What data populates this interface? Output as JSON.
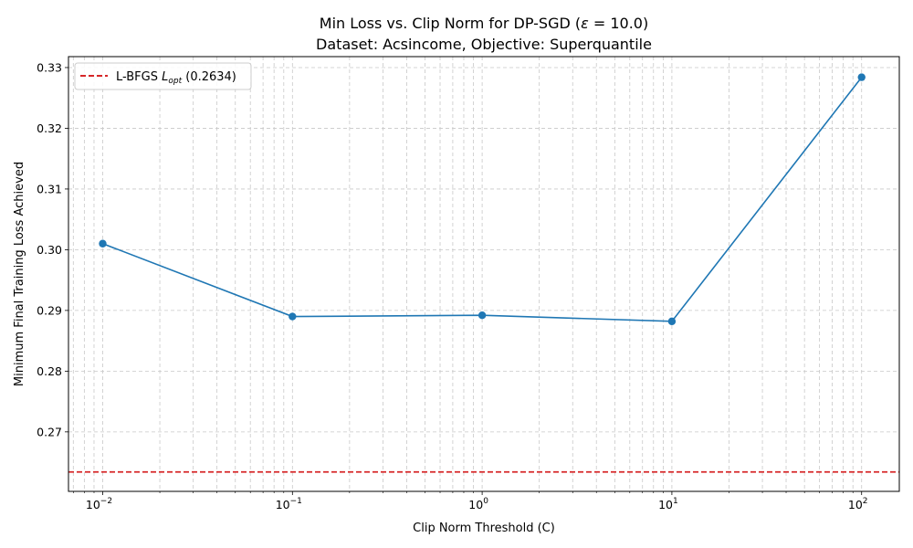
{
  "chart_data": {
    "type": "line",
    "title_line1_prefix": "Min Loss vs. Clip Norm for DP-SGD (",
    "title_epsilon_symbol": "ε",
    "title_epsilon_value": " = 10.0)",
    "title_line2": "Dataset: Acsincome, Objective: Superquantile",
    "xlabel": "Clip Norm Threshold (C)",
    "ylabel": "Minimum Final Training Loss Achieved",
    "xscale": "log",
    "xlim": [
      0.0066,
      158
    ],
    "ylim": [
      0.2602,
      0.3318
    ],
    "grid": true,
    "legend_location": "upper-left",
    "x_ticks": [
      {
        "value": 0.01,
        "base": "10",
        "exp": "−2"
      },
      {
        "value": 0.1,
        "base": "10",
        "exp": "−1"
      },
      {
        "value": 1,
        "base": "10",
        "exp": "0"
      },
      {
        "value": 10,
        "base": "10",
        "exp": "1"
      },
      {
        "value": 100,
        "base": "10",
        "exp": "2"
      }
    ],
    "y_ticks": [
      {
        "value": 0.27,
        "label": "0.27"
      },
      {
        "value": 0.28,
        "label": "0.28"
      },
      {
        "value": 0.29,
        "label": "0.29"
      },
      {
        "value": 0.3,
        "label": "0.30"
      },
      {
        "value": 0.31,
        "label": "0.31"
      },
      {
        "value": 0.32,
        "label": "0.32"
      },
      {
        "value": 0.33,
        "label": "0.33"
      }
    ],
    "series": [
      {
        "color": "#1f77b4",
        "x": [
          0.01,
          0.1,
          1,
          10,
          100
        ],
        "y": [
          0.301,
          0.289,
          0.2892,
          0.2882,
          0.3284
        ]
      }
    ],
    "reference_line": {
      "orientation": "horizontal",
      "y": 0.2634,
      "color": "#d62728",
      "style": "dashed",
      "legend_prefix": "L-BFGS ",
      "legend_symbol": "L",
      "legend_subscript": "opt",
      "legend_suffix": " (0.2634)"
    }
  }
}
